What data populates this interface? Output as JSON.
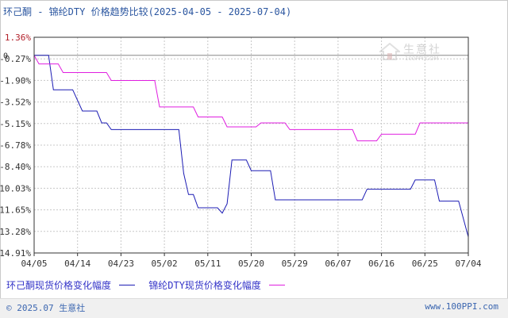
{
  "title": "环己酮 - 锦纶DTY 价格趋势比较(2025-04-05 - 2025-07-04)",
  "watermark": {
    "text": "生意社",
    "sub": "100PPI.COM"
  },
  "footer": {
    "left": "© 2025.07 生意社",
    "right": "www.100PPI.com"
  },
  "colors": {
    "series1": "#1c1cb4",
    "series2": "#e01ee0",
    "axis": "#333333",
    "grid": "#c8c8c8",
    "highlight": "#b2202a"
  },
  "chart_data": {
    "type": "line",
    "title": "环己酮 - 锦纶DTY 价格趋势比较(2025-04-05 - 2025-07-04)",
    "xlabel": "",
    "ylabel": "",
    "x_ticks": [
      "04/05",
      "04/14",
      "04/23",
      "05/02",
      "05/11",
      "05/20",
      "05/29",
      "06/07",
      "06/16",
      "06/25",
      "07/04"
    ],
    "y_ticks": [
      "1.36%",
      "-0.27%",
      "-1.90%",
      "-3.52%",
      "-5.15%",
      "-6.78%",
      "-8.40%",
      "-10.03%",
      "-11.65%",
      "-13.28%",
      "-14.91%"
    ],
    "ylim": [
      -14.91,
      1.36
    ],
    "zero_label": "0",
    "grid": true,
    "legend_position": "bottom-left",
    "series": [
      {
        "name": "环己酮现货价格变化幅度",
        "points": [
          [
            "04/05",
            0
          ],
          [
            "04/08",
            0
          ],
          [
            "04/09",
            -2.6
          ],
          [
            "04/12",
            -2.6
          ],
          [
            "04/13",
            -2.6
          ],
          [
            "04/15",
            -4.2
          ],
          [
            "04/18",
            -4.2
          ],
          [
            "04/19",
            -5.1
          ],
          [
            "04/20",
            -5.1
          ],
          [
            "04/21",
            -5.6
          ],
          [
            "05/05",
            -5.6
          ],
          [
            "05/06",
            -8.9
          ],
          [
            "05/07",
            -10.5
          ],
          [
            "05/08",
            -10.5
          ],
          [
            "05/09",
            -11.5
          ],
          [
            "05/13",
            -11.5
          ],
          [
            "05/14",
            -11.9
          ],
          [
            "05/15",
            -11.2
          ],
          [
            "05/16",
            -7.9
          ],
          [
            "05/19",
            -7.9
          ],
          [
            "05/20",
            -8.7
          ],
          [
            "05/24",
            -8.7
          ],
          [
            "05/25",
            -10.9
          ],
          [
            "06/12",
            -10.9
          ],
          [
            "06/13",
            -10.1
          ],
          [
            "06/22",
            -10.1
          ],
          [
            "06/23",
            -9.4
          ],
          [
            "06/27",
            -9.4
          ],
          [
            "06/28",
            -11.0
          ],
          [
            "07/02",
            -11.0
          ],
          [
            "07/04",
            -13.7
          ]
        ]
      },
      {
        "name": "锦纶DTY现货价格变化幅度",
        "points": [
          [
            "04/05",
            0
          ],
          [
            "04/06",
            -0.65
          ],
          [
            "04/10",
            -0.65
          ],
          [
            "04/11",
            -1.3
          ],
          [
            "04/20",
            -1.3
          ],
          [
            "04/21",
            -1.9
          ],
          [
            "04/30",
            -1.9
          ],
          [
            "05/01",
            -3.9
          ],
          [
            "05/08",
            -3.9
          ],
          [
            "05/09",
            -4.65
          ],
          [
            "05/14",
            -4.65
          ],
          [
            "05/15",
            -5.4
          ],
          [
            "05/21",
            -5.4
          ],
          [
            "05/22",
            -5.1
          ],
          [
            "05/27",
            -5.1
          ],
          [
            "05/28",
            -5.6
          ],
          [
            "06/10",
            -5.6
          ],
          [
            "06/11",
            -6.45
          ],
          [
            "06/15",
            -6.45
          ],
          [
            "06/16",
            -5.95
          ],
          [
            "06/23",
            -5.95
          ],
          [
            "06/24",
            -5.1
          ],
          [
            "07/04",
            -5.1
          ]
        ]
      }
    ]
  }
}
